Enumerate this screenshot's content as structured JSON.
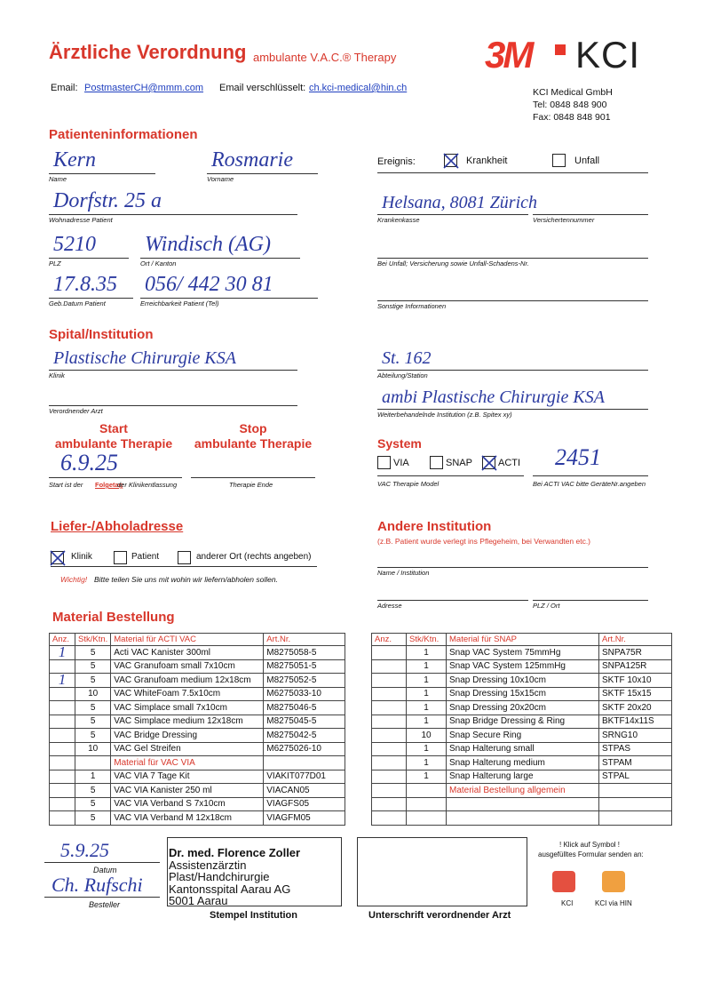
{
  "header": {
    "title": "Ärztliche Verordnung",
    "subtitle": "ambulante V.A.C.® Therapy",
    "logo_3m": "3M",
    "logo_kci": "KCI",
    "email_label": "Email:",
    "email": "PostmasterCH@mmm.com",
    "email_enc_label": "Email verschlüsselt:",
    "email_enc": "ch.kci-medical@hin.ch",
    "company": [
      "KCI Medical GmbH",
      "Tel: 0848 848 900",
      "Fax: 0848 848 901"
    ]
  },
  "patient": {
    "heading": "Patienteninformationen",
    "ereignis": {
      "label": "Ereignis:",
      "options": [
        {
          "label": "Krankheit",
          "checked": true
        },
        {
          "label": "Unfall",
          "checked": false
        }
      ]
    },
    "fields": [
      {
        "label": "Name",
        "value": "Kern"
      },
      {
        "label": "Vorname",
        "value": "Rosmarie"
      },
      {
        "label": "Wohnadresse Patient",
        "value": "Dorfstr. 25 a"
      },
      {
        "label": "PLZ",
        "value": "5210"
      },
      {
        "label": "Ort / Kanton",
        "value": "Windisch (AG)"
      },
      {
        "label": "Geb.Datum Patient",
        "value": "17.8.35"
      },
      {
        "label": "Erreichbarkeit Patient (Tel)",
        "value": "056/ 442 30 81"
      },
      {
        "label": "Krankenkasse",
        "value": "Helsana, 8081 Zürich"
      },
      {
        "label": "Versichertennummer",
        "value": null
      },
      {
        "label": "Bei Unfall; Versicherung sowie Unfall-Schadens-Nr.",
        "value": null
      },
      {
        "label": "Sonstige Informationen",
        "value": null
      }
    ]
  },
  "spital": {
    "heading": "Spital/Institution",
    "fields": [
      {
        "label": "Klinik",
        "value": "Plastische Chirurgie KSA"
      },
      {
        "label": "Abteilung/Station",
        "value": "St. 162"
      },
      {
        "label": "Verordnender Arzt",
        "value": null
      },
      {
        "label": "Weiterbehandelnde Institution (z.B. Spitex xy)",
        "value": "ambi Plastische Chirurgie KSA"
      }
    ]
  },
  "therapy": {
    "start": {
      "heading": [
        "Start",
        "ambulante Therapie"
      ],
      "value": "6.9.25",
      "label": [
        "Start ist der ",
        "Folgetag",
        " der Klinikentlassung"
      ]
    },
    "stop": {
      "heading": [
        "Stop",
        "ambulante Therapie"
      ],
      "value": null,
      "label": "Therapie Ende"
    }
  },
  "system": {
    "heading": "System",
    "options": [
      {
        "label": "VIA",
        "checked": false
      },
      {
        "label": "SNAP",
        "checked": false
      },
      {
        "label": "ACTI",
        "checked": true
      }
    ],
    "model_label": "VAC Therapie Model",
    "device_number": "2451",
    "device_label": "Bei ACTI VAC bitte GeräteNr.angeben"
  },
  "delivery": {
    "heading": "Liefer-/Abholadresse",
    "options": [
      {
        "label": "Klinik",
        "checked": true
      },
      {
        "label": "Patient",
        "checked": false
      },
      {
        "label": "anderer Ort  (rechts angeben)",
        "checked": false
      }
    ],
    "note_important": "Wichtig!",
    "note": "Bitte teilen Sie uns mit wohin wir liefern/abholen sollen."
  },
  "other_institution": {
    "heading": "Andere Institution",
    "subtitle": "(z.B. Patient wurde verlegt ins Pflegeheim, bei Verwandten etc.)",
    "fields": [
      {
        "label": "Name / Institution"
      },
      {
        "label": "Adresse"
      },
      {
        "label": "PLZ / Ort"
      }
    ]
  },
  "material": {
    "heading": "Material Bestellung",
    "tables": [
      {
        "headers": [
          "Anz.",
          "Stk/Ktn.",
          "Material für ACTI VAC",
          "Art.Nr."
        ],
        "rows": [
          [
            "1",
            "5",
            "Acti VAC Kanister 300ml",
            "M8275058-5"
          ],
          [
            null,
            "5",
            "VAC Granufoam small 7x10cm",
            "M8275051-5"
          ],
          [
            "1",
            "5",
            "VAC Granufoam medium 12x18cm",
            "M8275052-5"
          ],
          [
            null,
            "10",
            "VAC WhiteFoam 7.5x10cm",
            "M6275033-10"
          ],
          [
            null,
            "5",
            "VAC Simplace small 7x10cm",
            "M8275046-5"
          ],
          [
            null,
            "5",
            "VAC Simplace medium 12x18cm",
            "M8275045-5"
          ],
          [
            null,
            "5",
            "VAC Bridge Dressing",
            "M8275042-5"
          ],
          [
            null,
            "10",
            "VAC Gel Streifen",
            "M6275026-10"
          ],
          {
            "section": "Material für VAC VIA"
          },
          [
            null,
            "1",
            "VAC VIA 7 Tage Kit",
            "VIAKIT077D01"
          ],
          [
            null,
            "5",
            "VAC VIA Kanister 250 ml",
            "VIACAN05"
          ],
          [
            null,
            "5",
            "VAC VIA Verband S 7x10cm",
            "VIAGFS05"
          ],
          [
            null,
            "5",
            "VAC VIA Verband M 12x18cm",
            "VIAGFM05"
          ]
        ]
      },
      {
        "headers": [
          "Anz.",
          "Stk/Ktn.",
          "Material für SNAP",
          "Art.Nr."
        ],
        "rows": [
          [
            null,
            "1",
            "Snap VAC System 75mmHg",
            "SNPA75R"
          ],
          [
            null,
            "1",
            "Snap VAC System 125mmHg",
            "SNPA125R"
          ],
          [
            null,
            "1",
            "Snap Dressing 10x10cm",
            "SKTF 10x10"
          ],
          [
            null,
            "1",
            "Snap Dressing 15x15cm",
            "SKTF 15x15"
          ],
          [
            null,
            "1",
            "Snap Dressing 20x20cm",
            "SKTF 20x20"
          ],
          [
            null,
            "1",
            "Snap Bridge Dressing & Ring",
            "BKTF14x11S"
          ],
          [
            null,
            "10",
            "Snap Secure Ring",
            "SRNG10"
          ],
          [
            null,
            "1",
            "Snap Halterung small",
            "STPAS"
          ],
          [
            null,
            "1",
            "Snap Halterung medium",
            "STPAM"
          ],
          [
            null,
            "1",
            "Snap Halterung large",
            "STPAL"
          ],
          {
            "section": "Material Bestellung allgemein"
          },
          [
            null,
            null,
            null,
            null
          ],
          [
            null,
            null,
            null,
            null
          ]
        ]
      }
    ]
  },
  "footer": {
    "date": "5.9.25",
    "date_label": "Datum",
    "orderer": "Ch. Rufschi",
    "orderer_label": "Besteller",
    "stamp": [
      "Dr. med. Florence Zoller",
      "Assistenzärztin",
      "Plast/Handchirurgie",
      "Kantonsspital Aarau AG",
      "5001 Aarau"
    ],
    "stamp_label": "Stempel Institution",
    "signature_label": "Unterschrift verordnender Arzt",
    "send_title": "! Klick auf Symbol !",
    "send_subtitle": "ausgefülltes Formular senden an:",
    "send_options": [
      "KCI",
      "KCI via HIN"
    ]
  }
}
